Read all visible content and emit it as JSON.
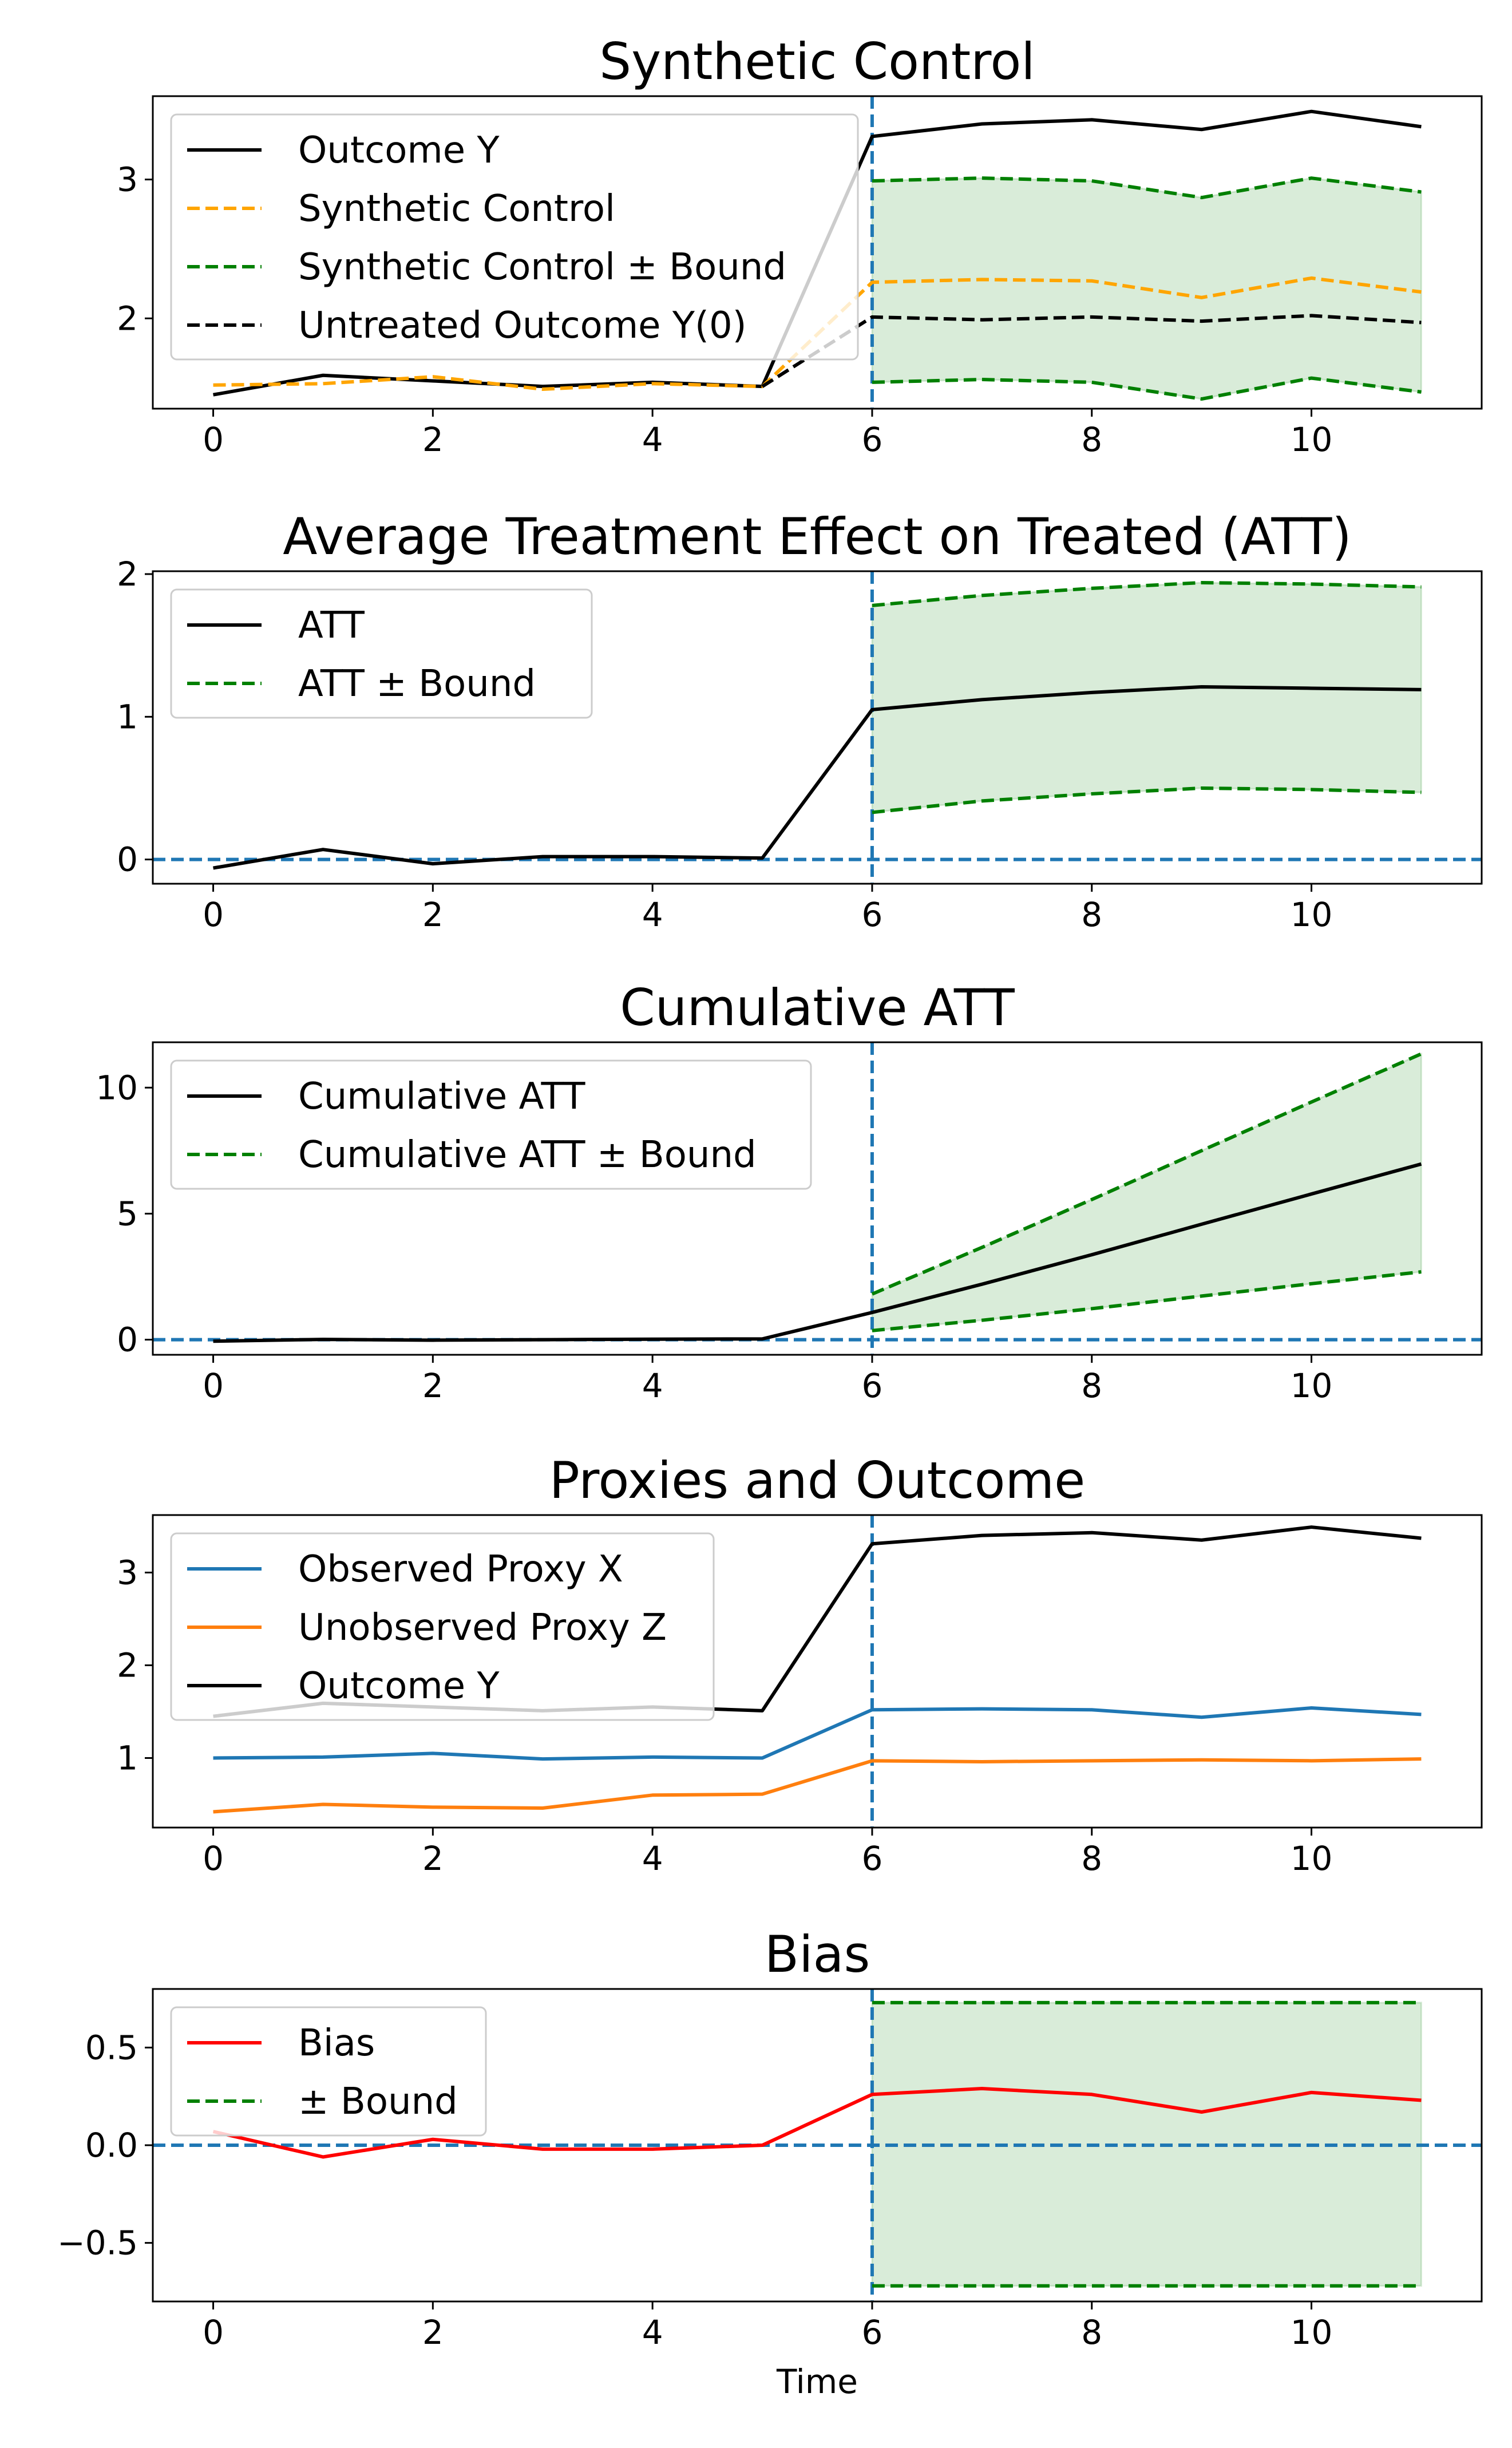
{
  "chart_data": [
    {
      "type": "line",
      "title": "Synthetic Control",
      "xlabel": "",
      "ylabel": "",
      "xlim": [
        -0.55,
        11.55
      ],
      "ylim": [
        1.35,
        3.6
      ],
      "xticks": [
        0,
        2,
        4,
        6,
        8,
        10
      ],
      "yticks": [
        2,
        3
      ],
      "x": [
        0,
        1,
        2,
        3,
        4,
        5,
        6,
        7,
        8,
        9,
        10,
        11
      ],
      "series": [
        {
          "name": "Outcome Y",
          "color": "#000000",
          "style": "solid",
          "values": [
            1.45,
            1.59,
            1.55,
            1.51,
            1.54,
            1.51,
            3.31,
            3.4,
            3.43,
            3.36,
            3.49,
            3.38
          ]
        },
        {
          "name": "Synthetic Control",
          "color": "#ffa500",
          "style": "dashed",
          "values": [
            1.52,
            1.53,
            1.58,
            1.49,
            1.53,
            1.51,
            2.26,
            2.28,
            2.27,
            2.15,
            2.29,
            2.19
          ]
        },
        {
          "name": "Synthetic Control ± Bound",
          "color": "#008000",
          "style": "dashed",
          "upper": [
            null,
            null,
            null,
            null,
            null,
            null,
            2.99,
            3.01,
            2.99,
            2.87,
            3.01,
            2.91
          ],
          "lower": [
            null,
            null,
            null,
            null,
            null,
            null,
            1.54,
            1.56,
            1.54,
            1.42,
            1.57,
            1.47
          ]
        },
        {
          "name": "Untreated Outcome Y(0)",
          "color": "#000000",
          "style": "dashed",
          "values": [
            null,
            null,
            null,
            null,
            null,
            1.51,
            2.01,
            1.99,
            2.01,
            1.98,
            2.02,
            1.97
          ]
        }
      ],
      "vline": 6,
      "hline": null,
      "legend": "top-left"
    },
    {
      "type": "line",
      "title": "Average Treatment Effect on Treated (ATT)",
      "xlabel": "",
      "ylabel": "",
      "xlim": [
        -0.55,
        11.55
      ],
      "ylim": [
        -0.17,
        2.02
      ],
      "xticks": [
        0,
        2,
        4,
        6,
        8,
        10
      ],
      "yticks": [
        0,
        1,
        2
      ],
      "x": [
        0,
        1,
        2,
        3,
        4,
        5,
        6,
        7,
        8,
        9,
        10,
        11
      ],
      "series": [
        {
          "name": "ATT",
          "color": "#000000",
          "style": "solid",
          "values": [
            -0.06,
            0.07,
            -0.03,
            0.02,
            0.02,
            0.01,
            1.05,
            1.12,
            1.17,
            1.21,
            1.2,
            1.19
          ]
        },
        {
          "name": "ATT ± Bound",
          "color": "#008000",
          "style": "dashed",
          "upper": [
            null,
            null,
            null,
            null,
            null,
            null,
            1.78,
            1.85,
            1.9,
            1.94,
            1.93,
            1.91
          ],
          "lower": [
            null,
            null,
            null,
            null,
            null,
            null,
            0.33,
            0.41,
            0.46,
            0.5,
            0.49,
            0.47
          ]
        }
      ],
      "vline": 6,
      "hline": 0,
      "legend": "top-left"
    },
    {
      "type": "line",
      "title": "Cumulative ATT",
      "xlabel": "",
      "ylabel": "",
      "xlim": [
        -0.55,
        11.55
      ],
      "ylim": [
        -0.6,
        11.8
      ],
      "xticks": [
        0,
        2,
        4,
        6,
        8,
        10
      ],
      "yticks": [
        0,
        5,
        10
      ],
      "x": [
        0,
        1,
        2,
        3,
        4,
        5,
        6,
        7,
        8,
        9,
        10,
        11
      ],
      "series": [
        {
          "name": "Cumulative ATT",
          "color": "#000000",
          "style": "solid",
          "values": [
            -0.06,
            0.01,
            -0.02,
            0.0,
            0.02,
            0.03,
            1.08,
            2.2,
            3.37,
            4.58,
            5.78,
            6.97
          ]
        },
        {
          "name": "Cumulative ATT ± Bound",
          "color": "#008000",
          "style": "dashed",
          "upper": [
            null,
            null,
            null,
            null,
            null,
            null,
            1.81,
            3.66,
            5.56,
            7.5,
            9.43,
            11.34
          ],
          "lower": [
            null,
            null,
            null,
            null,
            null,
            null,
            0.36,
            0.77,
            1.23,
            1.73,
            2.22,
            2.69
          ]
        }
      ],
      "vline": 6,
      "hline": 0,
      "legend": "top-left"
    },
    {
      "type": "line",
      "title": "Proxies and Outcome",
      "xlabel": "",
      "ylabel": "",
      "xlim": [
        -0.55,
        11.55
      ],
      "ylim": [
        0.25,
        3.62
      ],
      "xticks": [
        0,
        2,
        4,
        6,
        8,
        10
      ],
      "yticks": [
        1,
        2,
        3
      ],
      "x": [
        0,
        1,
        2,
        3,
        4,
        5,
        6,
        7,
        8,
        9,
        10,
        11
      ],
      "series": [
        {
          "name": "Observed Proxy X",
          "color": "#1f77b4",
          "style": "solid",
          "values": [
            1.0,
            1.01,
            1.05,
            0.99,
            1.01,
            1.0,
            1.52,
            1.53,
            1.52,
            1.44,
            1.54,
            1.47
          ]
        },
        {
          "name": "Unobserved Proxy Z",
          "color": "#ff7f0e",
          "style": "solid",
          "values": [
            0.42,
            0.5,
            0.47,
            0.46,
            0.6,
            0.61,
            0.97,
            0.96,
            0.97,
            0.98,
            0.97,
            0.99
          ]
        },
        {
          "name": "Outcome Y",
          "color": "#000000",
          "style": "solid",
          "values": [
            1.45,
            1.59,
            1.55,
            1.51,
            1.55,
            1.51,
            3.31,
            3.4,
            3.43,
            3.35,
            3.49,
            3.37
          ]
        }
      ],
      "vline": 6,
      "hline": null,
      "legend": "top-left"
    },
    {
      "type": "line",
      "title": "Bias",
      "xlabel": "Time",
      "ylabel": "",
      "xlim": [
        -0.55,
        11.55
      ],
      "ylim": [
        -0.8,
        0.8
      ],
      "xticks": [
        0,
        2,
        4,
        6,
        8,
        10
      ],
      "yticks": [
        -0.5,
        0.0,
        0.5
      ],
      "ytick_labels": [
        "−0.5",
        "0.0",
        "0.5"
      ],
      "x": [
        0,
        1,
        2,
        3,
        4,
        5,
        6,
        7,
        8,
        9,
        10,
        11
      ],
      "series": [
        {
          "name": "Bias",
          "color": "#ff0000",
          "style": "solid",
          "values": [
            0.07,
            -0.06,
            0.03,
            -0.02,
            -0.02,
            0.0,
            0.26,
            0.29,
            0.26,
            0.17,
            0.27,
            0.23
          ]
        },
        {
          "name": "± Bound",
          "color": "#008000",
          "style": "dashed",
          "upper": [
            null,
            null,
            null,
            null,
            null,
            null,
            0.73,
            0.73,
            0.73,
            0.73,
            0.73,
            0.73
          ],
          "lower": [
            null,
            null,
            null,
            null,
            null,
            null,
            -0.72,
            -0.72,
            -0.72,
            -0.72,
            -0.72,
            -0.72
          ]
        }
      ],
      "vline": 6,
      "hline": 0,
      "legend": "top-left"
    }
  ]
}
